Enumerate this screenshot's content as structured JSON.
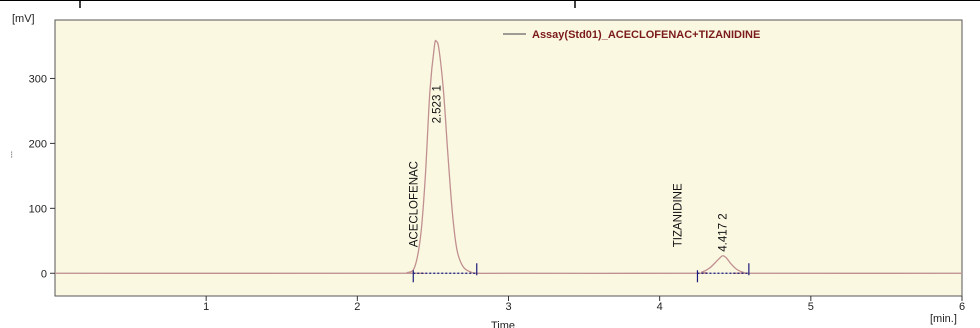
{
  "chart_data": {
    "type": "line",
    "title": "",
    "xlabel": "Time",
    "ylabel": "---",
    "x_unit": "[min.]",
    "y_unit": "[mV]",
    "xlim": [
      0,
      6
    ],
    "ylim": [
      -35,
      390
    ],
    "x_ticks": [
      1,
      2,
      3,
      4,
      5,
      6
    ],
    "y_ticks": [
      0,
      100,
      200,
      300
    ],
    "grid": false,
    "legend": {
      "position": "top-right"
    },
    "series": [
      {
        "name": "Assay(Std01)_ACECLOFENAC+TIZANIDINE",
        "color": "#c09090",
        "x": [
          0.0,
          2.25,
          2.33,
          2.38,
          2.42,
          2.45,
          2.48,
          2.51,
          2.523,
          2.54,
          2.57,
          2.6,
          2.63,
          2.66,
          2.7,
          2.75,
          2.8,
          3.0,
          4.2,
          4.28,
          4.33,
          4.37,
          4.4,
          4.417,
          4.44,
          4.47,
          4.51,
          4.56,
          4.6,
          6.0
        ],
        "y": [
          0,
          0,
          1,
          10,
          60,
          150,
          280,
          350,
          357,
          345,
          280,
          180,
          90,
          35,
          10,
          2,
          0,
          0,
          0,
          2,
          8,
          17,
          24,
          27,
          24,
          15,
          6,
          1,
          0,
          0
        ]
      }
    ],
    "peaks": [
      {
        "number": "1",
        "retention_time": "2.523",
        "name": "ACECLOFENAC",
        "start": 2.37,
        "end": 2.79,
        "apex_x": 2.523,
        "apex_y": 357
      },
      {
        "number": "2",
        "retention_time": "4.417",
        "name": "TIZANIDINE",
        "start": 4.25,
        "end": 4.59,
        "apex_x": 4.417,
        "apex_y": 27
      }
    ]
  }
}
